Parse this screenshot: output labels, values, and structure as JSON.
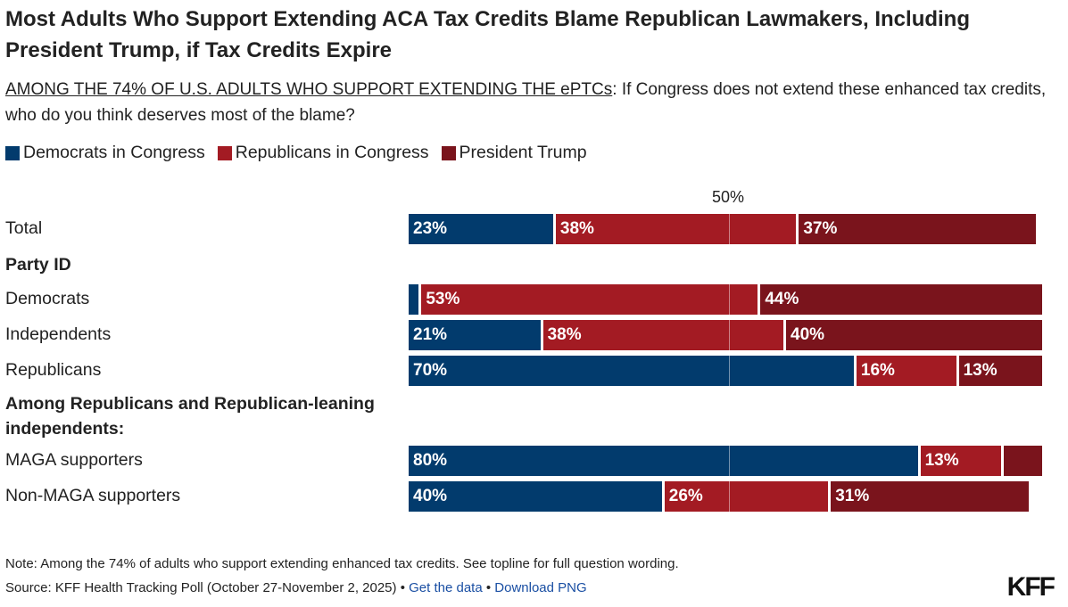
{
  "chart_data": {
    "type": "bar",
    "orientation": "horizontal",
    "stacked": true,
    "title": "Most Adults Who Support Extending ACA Tax Credits Blame Republican Lawmakers, Including President Trump, if Tax Credits Expire",
    "subtitle_prefix": "AMONG THE 74% OF U.S. ADULTS WHO SUPPORT EXTENDING THE ePTCs",
    "subtitle_rest": ": If Congress does not extend these enhanced tax credits, who do you think deserves most of the blame?",
    "xlim": [
      0,
      100
    ],
    "reference_line": {
      "value": 50,
      "label": "50%"
    },
    "legend_placement": "top-left",
    "series": [
      {
        "name": "Democrats in Congress",
        "color": "#023b6d"
      },
      {
        "name": "Republicans in Congress",
        "color": "#a31b23"
      },
      {
        "name": "President Trump",
        "color": "#7a141c"
      }
    ],
    "groups": [
      "Party ID",
      "Among Republicans and Republican-leaning independents:"
    ],
    "rows": [
      {
        "category": "Total",
        "values": [
          23,
          38,
          37
        ],
        "labels": [
          "23%",
          "38%",
          "37%"
        ]
      },
      {
        "category": "Democrats",
        "group": "Party ID",
        "values": [
          2,
          53,
          44
        ],
        "labels": [
          "",
          "53%",
          "44%"
        ]
      },
      {
        "category": "Independents",
        "group": "Party ID",
        "values": [
          21,
          38,
          40
        ],
        "labels": [
          "21%",
          "38%",
          "40%"
        ]
      },
      {
        "category": "Republicans",
        "group": "Party ID",
        "values": [
          70,
          16,
          13
        ],
        "labels": [
          "70%",
          "16%",
          "13%"
        ]
      },
      {
        "category": "MAGA supporters",
        "group": "Among Republicans and Republican-leaning independents:",
        "values": [
          80,
          13,
          6
        ],
        "labels": [
          "80%",
          "13%",
          ""
        ]
      },
      {
        "category": "Non-MAGA supporters",
        "group": "Among Republicans and Republican-leaning independents:",
        "values": [
          40,
          26,
          31
        ],
        "labels": [
          "40%",
          "26%",
          "31%"
        ]
      }
    ]
  },
  "footer": {
    "note": "Note: Among the 74% of adults who support extending enhanced tax credits. See topline for full question wording.",
    "source": "Source: KFF Health Tracking Poll (October 27-November 2, 2025)",
    "sep": " • ",
    "get_data": "Get the data",
    "download": "Download PNG",
    "logo": "KFF"
  }
}
